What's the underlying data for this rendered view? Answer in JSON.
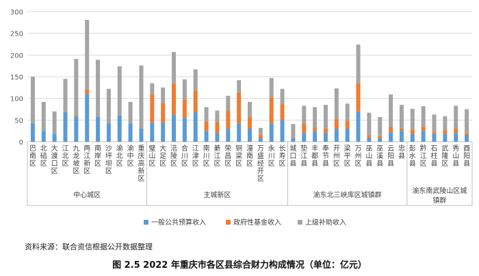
{
  "chart_data": {
    "type": "bar",
    "stacked": true,
    "ylim": [
      0,
      300
    ],
    "yticks": [
      0,
      50,
      100,
      150,
      200,
      250,
      300
    ],
    "grid": true,
    "legend_position": "bottom",
    "categories": [
      "巴南区",
      "北碚区",
      "大渡口区",
      "江北区",
      "九龙坡区",
      "两江新区",
      "南岸区",
      "沙坪坝区",
      "渝北区",
      "渝中区",
      "重庆高新区",
      "璧山区",
      "大足区",
      "涪陵区",
      "合川区",
      "江津区",
      "南川区",
      "綦江区",
      "荣昌区",
      "铜梁区",
      "潼南区",
      "万盛经开区",
      "永川区",
      "长寿区",
      "城口县",
      "垫江县",
      "丰都县",
      "奉节县",
      "开州区",
      "梁平区",
      "万州区",
      "巫山县",
      "巫溪县",
      "云阳县",
      "忠县",
      "彭水县",
      "黔江区",
      "石柱县",
      "武隆区",
      "秀山县",
      "酉阳县"
    ],
    "groups": [
      {
        "name": "中心城区",
        "count": 11
      },
      {
        "name": "主城新区",
        "count": 13
      },
      {
        "name": "渝东北三峡库区城镇群",
        "count": 11
      },
      {
        "name": "渝东南武陵山区城镇群",
        "count": 6
      }
    ],
    "series": [
      {
        "name": "一般公共预算收入",
        "color": "#5B9BD5",
        "values": [
          42,
          25,
          18,
          68,
          58,
          110,
          58,
          42,
          60,
          42,
          30,
          44,
          44,
          62,
          55,
          68,
          25,
          20,
          30,
          42,
          30,
          8,
          42,
          50,
          8,
          20,
          25,
          20,
          30,
          30,
          70,
          10,
          8,
          22,
          25,
          18,
          25,
          18,
          18,
          20,
          15
        ]
      },
      {
        "name": "政府性基金收入",
        "color": "#ED7D31",
        "values": [
          0,
          0,
          0,
          0,
          2,
          10,
          0,
          0,
          0,
          0,
          0,
          65,
          45,
          72,
          42,
          50,
          22,
          25,
          42,
          72,
          28,
          8,
          60,
          36,
          2,
          22,
          8,
          10,
          22,
          18,
          65,
          5,
          5,
          12,
          5,
          10,
          10,
          4,
          8,
          10,
          5
        ]
      },
      {
        "name": "上级补助收入",
        "color": "#A5A5A5",
        "values": [
          108,
          67,
          52,
          77,
          131,
          161,
          131,
          80,
          114,
          50,
          146,
          26,
          36,
          73,
          47,
          49,
          33,
          27,
          34,
          28,
          34,
          16,
          45,
          36,
          31,
          41,
          47,
          55,
          71,
          40,
          89,
          52,
          44,
          75,
          55,
          48,
          47,
          41,
          33,
          53,
          55
        ]
      }
    ]
  },
  "source_text": "资料来源：联合资信根据公开数据整理",
  "caption_text": "图 2.5    2022 年重庆市各区县综合财力构成情况（单位：亿元）"
}
